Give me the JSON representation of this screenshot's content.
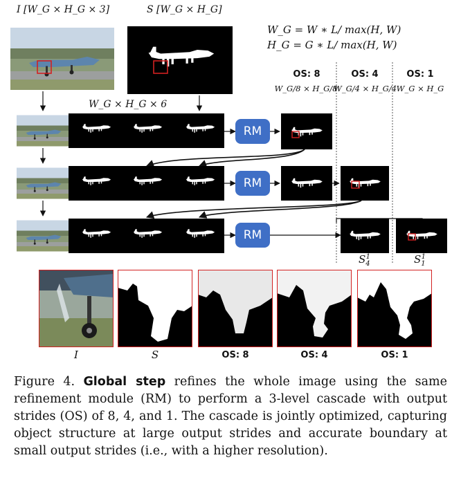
{
  "labels": {
    "image_top": "I [W_G × H_G × 3]",
    "seg_top": "S [W_G × H_G]",
    "stack_label": "W_G × H_G × 6",
    "eq1": "W_G = W ∗ L/ max(H, W)",
    "eq2": "H_G = G ∗ L/ max(H, W)"
  },
  "columns": [
    {
      "title": "OS: 8",
      "sub": "W_G/8 × H_G/8"
    },
    {
      "title": "OS: 4",
      "sub": "W_G/4 × H_G/4"
    },
    {
      "title": "OS: 1",
      "sub": "W_G × H_G"
    }
  ],
  "rm_label": "RM",
  "outputs": {
    "s4": "S",
    "s1": "S"
  },
  "bottom_labels": [
    "I",
    "S",
    "OS: 8",
    "OS: 4",
    "OS: 1"
  ],
  "caption": {
    "prefix": "Figure 4. ",
    "bold": "Global step",
    "rest": " refines the whole image using the same refinement module (RM) to perform a 3-level cascade with output strides (OS) of 8, 4, and 1. The cascade is jointly optimized, capturing object structure at large output strides and accurate boundary at small output strides (i.e., with a higher resolution)."
  },
  "colors": {
    "rm": "#3f6fc6",
    "highlight": "#d32020"
  }
}
